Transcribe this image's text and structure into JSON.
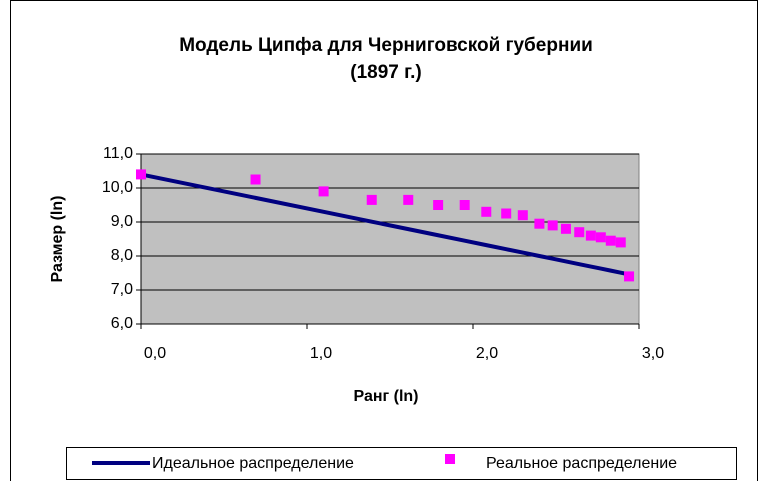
{
  "chart_data": {
    "type": "line_scatter",
    "title": [
      "Модель Ципфа для Черниговской губернии",
      "(1897 г.)"
    ],
    "x_label": "Ранг (ln)",
    "y_label": "Размер (ln)",
    "x": [
      0,
      0.69,
      1.1,
      1.39,
      1.61,
      1.79,
      1.95,
      2.08,
      2.2,
      2.3,
      2.4,
      2.48,
      2.56,
      2.64,
      2.71,
      2.77,
      2.83,
      2.89,
      2.94
    ],
    "series": [
      {
        "name": "Идеальное распределение",
        "color": "#000080",
        "style": "line",
        "values": [
          10.4,
          9.71,
          9.3,
          9.01,
          8.79,
          8.61,
          8.45,
          8.32,
          8.2,
          8.1,
          8.0,
          7.92,
          7.84,
          7.76,
          7.69,
          7.63,
          7.57,
          7.51,
          7.46
        ]
      },
      {
        "name": "Реальное распределение",
        "color": "#ff00ff",
        "style": "marker",
        "values": [
          10.4,
          10.25,
          9.9,
          9.65,
          9.65,
          9.5,
          9.5,
          9.3,
          9.25,
          9.2,
          8.95,
          8.9,
          8.8,
          8.7,
          8.6,
          8.55,
          8.45,
          8.4,
          7.4
        ]
      }
    ],
    "xlim": [
      0,
      3
    ],
    "xticks": [
      {
        "value": 0,
        "label": "0,0"
      },
      {
        "value": 1,
        "label": "1,0"
      },
      {
        "value": 2,
        "label": "2,0"
      },
      {
        "value": 3,
        "label": "3,0"
      }
    ],
    "ylim": [
      6,
      11
    ],
    "yticks": [
      {
        "value": 6,
        "label": "6,0"
      },
      {
        "value": 7,
        "label": "7,0"
      },
      {
        "value": 8,
        "label": "8,0"
      },
      {
        "value": 9,
        "label": "9,0"
      },
      {
        "value": 10,
        "label": "10,0"
      },
      {
        "value": 11,
        "label": "11,0"
      }
    ],
    "grid": true,
    "legend": "bottom",
    "plot_background": "#c0c0c0"
  }
}
